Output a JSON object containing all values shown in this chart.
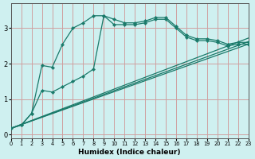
{
  "xlabel": "Humidex (Indice chaleur)",
  "background_color": "#cff0f0",
  "grid_color": "#d0a0a0",
  "line_color": "#1a7a6a",
  "xlim": [
    0,
    23
  ],
  "ylim": [
    -0.1,
    3.7
  ],
  "yticks": [
    0,
    1,
    2,
    3
  ],
  "xticks": [
    0,
    1,
    2,
    3,
    4,
    5,
    6,
    7,
    8,
    9,
    10,
    11,
    12,
    13,
    14,
    15,
    16,
    17,
    18,
    19,
    20,
    21,
    22,
    23
  ],
  "curve1_x": [
    0,
    1,
    2,
    3,
    4,
    5,
    6,
    7,
    8,
    9,
    10,
    11,
    12,
    13,
    14,
    15,
    16,
    17,
    18,
    19,
    20,
    21,
    22,
    23
  ],
  "curve1_y": [
    0.18,
    0.27,
    0.6,
    1.95,
    1.9,
    2.55,
    3.0,
    3.15,
    3.35,
    3.35,
    3.25,
    3.15,
    3.15,
    3.2,
    3.3,
    3.3,
    3.05,
    2.8,
    2.7,
    2.7,
    2.65,
    2.55,
    2.6,
    2.6
  ],
  "curve2_x": [
    0,
    1,
    2,
    3,
    4,
    5,
    6,
    7,
    8,
    9,
    10,
    11,
    12,
    13,
    14,
    15,
    16,
    17,
    18,
    19,
    20,
    21,
    22,
    23
  ],
  "curve2_y": [
    0.18,
    0.27,
    0.6,
    1.25,
    1.2,
    1.35,
    1.5,
    1.65,
    1.85,
    3.35,
    3.1,
    3.1,
    3.1,
    3.15,
    3.25,
    3.25,
    3.0,
    2.75,
    2.65,
    2.65,
    2.6,
    2.5,
    2.55,
    2.55
  ],
  "line1_x": [
    0,
    23
  ],
  "line1_y": [
    0.18,
    2.72
  ],
  "line2_x": [
    0,
    23
  ],
  "line2_y": [
    0.18,
    2.62
  ],
  "line3_x": [
    0,
    23
  ],
  "line3_y": [
    0.18,
    2.55
  ],
  "linewidth": 0.9,
  "markersize": 2.2
}
